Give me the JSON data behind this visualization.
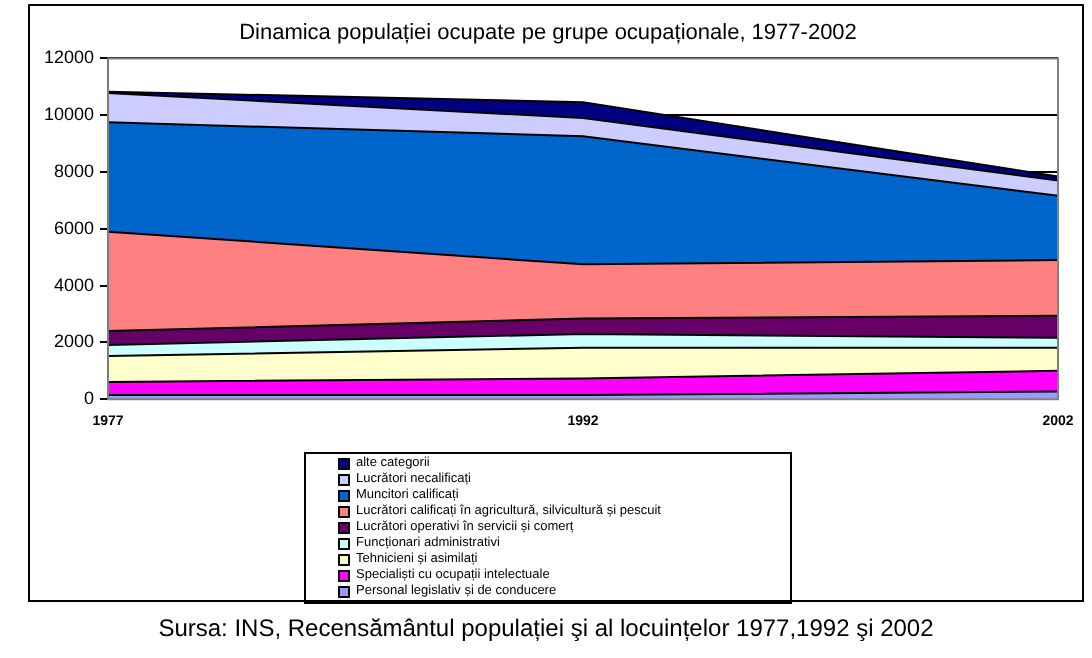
{
  "chart_data": {
    "type": "area",
    "stacked": true,
    "title": "Dinamica populației ocupate pe grupe ocupaționale, 1977-2002",
    "categories": [
      "1977",
      "1992",
      "2002"
    ],
    "series": [
      {
        "name": "Personal legislativ și de conducere",
        "color": "#9999ff",
        "values": [
          150,
          150,
          270
        ]
      },
      {
        "name": "Specialiști cu ocupații intelectuale",
        "color": "#ff00ff",
        "values": [
          460,
          580,
          730
        ]
      },
      {
        "name": "Tehnicieni și asimilați",
        "color": "#ffffcc",
        "values": [
          910,
          1080,
          810
        ]
      },
      {
        "name": "Funcționari administrativi",
        "color": "#ccffff",
        "values": [
          390,
          490,
          350
        ]
      },
      {
        "name": "Lucrători operativi în servicii și comerț",
        "color": "#660066",
        "values": [
          490,
          540,
          780
        ]
      },
      {
        "name": "Lucrători calificați în agricultură, silvicultură și pescuit",
        "color": "#ff8080",
        "values": [
          3500,
          1910,
          1960
        ]
      },
      {
        "name": "Muncitori calificați",
        "color": "#0066cc",
        "values": [
          3850,
          4510,
          2260
        ]
      },
      {
        "name": "Lucrători necalificați",
        "color": "#ccccff",
        "values": [
          1030,
          640,
          540
        ]
      },
      {
        "name": "alte categorii",
        "color": "#000080",
        "values": [
          50,
          560,
          140
        ]
      }
    ],
    "ylim": [
      0,
      12000
    ],
    "yticks": [
      0,
      2000,
      4000,
      6000,
      8000,
      10000,
      12000
    ],
    "grid": "y",
    "legend": "bottom",
    "annotations": [
      "Sursa: INS, Recensământul populației şi al locuințelor 1977,1992 şi 2002"
    ]
  }
}
